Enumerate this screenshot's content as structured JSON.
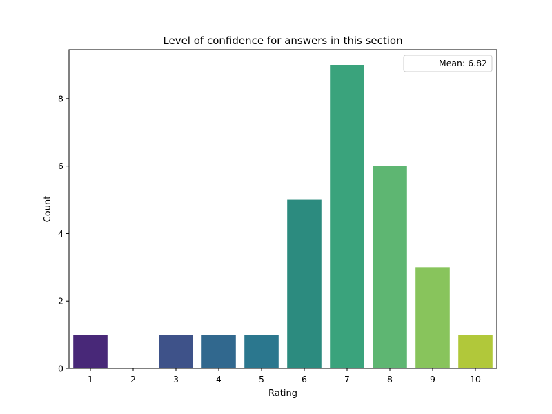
{
  "chart_data": {
    "type": "bar",
    "title": "Level of confidence for answers in this section",
    "xlabel": "Rating",
    "ylabel": "Count",
    "categories": [
      "1",
      "2",
      "3",
      "4",
      "5",
      "6",
      "7",
      "8",
      "9",
      "10"
    ],
    "values": [
      1,
      0,
      1,
      1,
      1,
      5,
      9,
      6,
      3,
      1
    ],
    "ylim": [
      0,
      9.45
    ],
    "yticks": [
      "0",
      "2",
      "4",
      "6",
      "8"
    ],
    "colors": [
      "#482173",
      "#433e85",
      "#3e4c8a",
      "#355f8d",
      "#2e6e8e",
      "#2a788e",
      "#21918c",
      "#2fb47c",
      "#5ec962",
      "#b5de2b"
    ],
    "bar_colors": [
      "#482878",
      "#443983",
      "#3e5289",
      "#31688e",
      "#2b778e",
      "#2c8b7f",
      "#3aa37c",
      "#5eb672",
      "#88c45c",
      "#b1c83a"
    ],
    "legend": {
      "placement": "upper-right",
      "label": "Mean: 6.82"
    },
    "grid": false
  }
}
